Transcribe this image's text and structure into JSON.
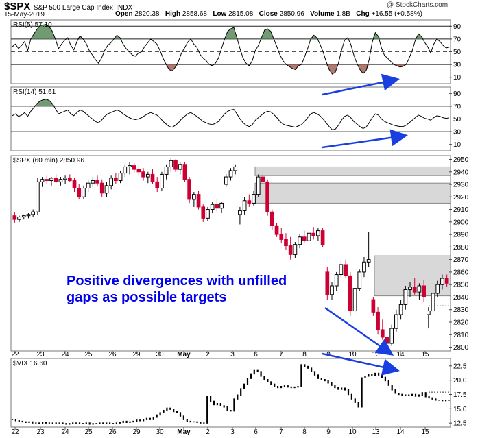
{
  "header": {
    "symbol": "$SPX",
    "name": "S&P 500 Large Cap Index",
    "exchange": "INDX",
    "date": "15-May-2019",
    "open_label": "Open",
    "open": "2820.38",
    "high_label": "High",
    "high": "2858.68",
    "low_label": "Low",
    "low": "2815.08",
    "close_label": "Close",
    "close": "2850.96",
    "volume_label": "Volume",
    "volume": "1.8B",
    "chg_label": "Chg",
    "chg": "+16.55 (+0.58%)",
    "credit": "@ StockCharts.com"
  },
  "colors": {
    "up": "#000000",
    "down": "#cc0033",
    "rsi_over": "#5a8a5a",
    "rsi_under": "#a0645a",
    "gap_fill": "#d8d8d8",
    "annotation": "#0000ee",
    "arrow": "#1a3fe0"
  },
  "chart_data": [
    {
      "type": "line",
      "panel": "rsi5",
      "label": "RSI(5) 57.10",
      "ylim": [
        0,
        100
      ],
      "y_ticks": [
        10,
        30,
        50,
        70,
        90
      ],
      "y_tick_labels": [
        "10",
        "30",
        "50",
        "70",
        "90"
      ],
      "reference_lines": [
        30,
        50,
        70,
        90
      ],
      "values": [
        58,
        62,
        55,
        60,
        66,
        52,
        70,
        78,
        85,
        91,
        92,
        93,
        89,
        82,
        70,
        55,
        62,
        68,
        72,
        60,
        53,
        66,
        75,
        70,
        63,
        52,
        45,
        38,
        32,
        40,
        52,
        60,
        64,
        70,
        76,
        72,
        62,
        55,
        50,
        45,
        43,
        48,
        50,
        58,
        64,
        70,
        66,
        62,
        52,
        40,
        30,
        22,
        20,
        26,
        35,
        48,
        56,
        65,
        70,
        62,
        57,
        46,
        40,
        36,
        30,
        28,
        32,
        40,
        55,
        70,
        82,
        86,
        88,
        72,
        55,
        40,
        32,
        28,
        36,
        52,
        60,
        72,
        84,
        86,
        82,
        70,
        58,
        45,
        36,
        30,
        27,
        24,
        22,
        28,
        30,
        42,
        55,
        70,
        76,
        72,
        62,
        50,
        35,
        22,
        15,
        18,
        32,
        52,
        68,
        72,
        62,
        45,
        32,
        22,
        16,
        20,
        38,
        65,
        80,
        74,
        56,
        44,
        40,
        35,
        30,
        28,
        26,
        27,
        30,
        40,
        52,
        68,
        78,
        74,
        65,
        58,
        48,
        62,
        70,
        66,
        60,
        56,
        57
      ]
    },
    {
      "type": "line",
      "panel": "rsi14",
      "label": "RSI(14) 51.61",
      "ylim": [
        0,
        100
      ],
      "y_ticks": [
        10,
        30,
        50,
        70,
        90
      ],
      "y_tick_labels": [
        "10",
        "30",
        "50",
        "70",
        "90"
      ],
      "reference_lines": [
        30,
        50,
        70
      ],
      "values": [
        55,
        58,
        54,
        56,
        60,
        54,
        62,
        68,
        74,
        78,
        80,
        81,
        79,
        74,
        66,
        58,
        60,
        62,
        64,
        58,
        55,
        60,
        64,
        62,
        58,
        54,
        50,
        46,
        44,
        48,
        54,
        58,
        60,
        62,
        64,
        62,
        58,
        55,
        52,
        50,
        49,
        50,
        52,
        55,
        58,
        60,
        58,
        56,
        52,
        46,
        42,
        38,
        37,
        40,
        44,
        50,
        54,
        58,
        60,
        57,
        54,
        50,
        46,
        44,
        42,
        41,
        43,
        46,
        52,
        58,
        62,
        64,
        65,
        58,
        50,
        44,
        40,
        38,
        41,
        48,
        52,
        56,
        60,
        62,
        61,
        57,
        52,
        46,
        42,
        40,
        39,
        38,
        37,
        39,
        41,
        46,
        52,
        58,
        60,
        58,
        55,
        50,
        44,
        38,
        33,
        34,
        40,
        48,
        54,
        56,
        52,
        46,
        42,
        38,
        35,
        37,
        44,
        52,
        58,
        56,
        50,
        46,
        44,
        42,
        40,
        39,
        38,
        38,
        40,
        44,
        48,
        52,
        56,
        54,
        51,
        50,
        48,
        52,
        55,
        54,
        52,
        51,
        51.61
      ]
    },
    {
      "type": "candlestick",
      "panel": "price",
      "label": "$SPX (60 min) 2850.96",
      "ylim": [
        2797,
        2953
      ],
      "y_ticks": [
        2800,
        2810,
        2820,
        2830,
        2840,
        2850,
        2860,
        2870,
        2880,
        2890,
        2900,
        2910,
        2920,
        2930,
        2940,
        2950
      ],
      "x_labels": [
        "22",
        "23",
        "24",
        "25",
        "26",
        "29",
        "30",
        "May",
        "2",
        "3",
        "6",
        "7",
        "8",
        "9",
        "10",
        "13",
        "14",
        "15"
      ],
      "candles": [
        [
          2905,
          2908,
          2899,
          2902
        ],
        [
          2902,
          2905,
          2900,
          2904
        ],
        [
          2904,
          2906,
          2902,
          2905
        ],
        [
          2905,
          2907,
          2903,
          2906
        ],
        [
          2906,
          2910,
          2904,
          2908
        ],
        [
          2908,
          2935,
          2906,
          2932
        ],
        [
          2932,
          2936,
          2928,
          2934
        ],
        [
          2934,
          2937,
          2930,
          2933
        ],
        [
          2933,
          2936,
          2929,
          2935
        ],
        [
          2935,
          2938,
          2931,
          2932
        ],
        [
          2932,
          2936,
          2929,
          2934
        ],
        [
          2934,
          2937,
          2930,
          2935
        ],
        [
          2935,
          2938,
          2932,
          2933
        ],
        [
          2933,
          2935,
          2924,
          2927
        ],
        [
          2927,
          2930,
          2918,
          2920
        ],
        [
          2920,
          2929,
          2918,
          2927
        ],
        [
          2927,
          2934,
          2924,
          2931
        ],
        [
          2931,
          2936,
          2928,
          2933
        ],
        [
          2933,
          2937,
          2929,
          2931
        ],
        [
          2931,
          2934,
          2920,
          2923
        ],
        [
          2923,
          2932,
          2920,
          2929
        ],
        [
          2929,
          2937,
          2926,
          2935
        ],
        [
          2935,
          2939,
          2930,
          2933
        ],
        [
          2933,
          2941,
          2931,
          2939
        ],
        [
          2939,
          2946,
          2936,
          2944
        ],
        [
          2944,
          2948,
          2938,
          2945
        ],
        [
          2945,
          2947,
          2939,
          2942
        ],
        [
          2942,
          2945,
          2937,
          2940
        ],
        [
          2940,
          2943,
          2933,
          2936
        ],
        [
          2936,
          2940,
          2931,
          2938
        ],
        [
          2938,
          2942,
          2930,
          2932
        ],
        [
          2932,
          2936,
          2924,
          2927
        ],
        [
          2927,
          2940,
          2925,
          2938
        ],
        [
          2938,
          2946,
          2934,
          2944
        ],
        [
          2944,
          2951,
          2940,
          2949
        ],
        [
          2949,
          2950,
          2940,
          2942
        ],
        [
          2942,
          2948,
          2938,
          2946
        ],
        [
          2946,
          2948,
          2932,
          2934
        ],
        [
          2934,
          2936,
          2915,
          2918
        ],
        [
          2918,
          2924,
          2912,
          2922
        ],
        [
          2922,
          2925,
          2910,
          2912
        ],
        [
          2912,
          2914,
          2900,
          2903
        ],
        [
          2903,
          2912,
          2901,
          2910
        ],
        [
          2910,
          2916,
          2907,
          2914
        ],
        [
          2914,
          2918,
          2908,
          2911
        ],
        [
          2911,
          2916,
          2907,
          2915
        ],
        [
          2930,
          2938,
          2928,
          2936
        ],
        [
          2936,
          2943,
          2933,
          2941
        ],
        [
          2941,
          2946,
          2938,
          2944
        ],
        [
          2906,
          2912,
          2898,
          2909
        ],
        [
          2909,
          2920,
          2906,
          2917
        ],
        [
          2917,
          2922,
          2912,
          2915
        ],
        [
          2915,
          2925,
          2913,
          2922
        ],
        [
          2922,
          2938,
          2920,
          2936
        ],
        [
          2936,
          2940,
          2930,
          2932
        ],
        [
          2932,
          2934,
          2905,
          2908
        ],
        [
          2908,
          2910,
          2894,
          2897
        ],
        [
          2897,
          2899,
          2888,
          2890
        ],
        [
          2890,
          2895,
          2883,
          2886
        ],
        [
          2886,
          2891,
          2878,
          2881
        ],
        [
          2881,
          2888,
          2870,
          2874
        ],
        [
          2874,
          2884,
          2871,
          2882
        ],
        [
          2882,
          2890,
          2879,
          2888
        ],
        [
          2888,
          2893,
          2883,
          2885
        ],
        [
          2885,
          2893,
          2880,
          2891
        ],
        [
          2891,
          2896,
          2886,
          2889
        ],
        [
          2889,
          2895,
          2885,
          2893
        ],
        [
          2893,
          2895,
          2880,
          2882
        ],
        [
          2860,
          2864,
          2838,
          2842
        ],
        [
          2842,
          2852,
          2838,
          2849
        ],
        [
          2849,
          2860,
          2845,
          2858
        ],
        [
          2858,
          2869,
          2855,
          2866
        ],
        [
          2866,
          2870,
          2855,
          2857
        ],
        [
          2857,
          2860,
          2825,
          2829
        ],
        [
          2829,
          2850,
          2826,
          2847
        ],
        [
          2847,
          2862,
          2845,
          2860
        ],
        [
          2860,
          2872,
          2856,
          2868
        ],
        [
          2868,
          2892,
          2864,
          2870
        ],
        [
          2838,
          2840,
          2825,
          2828
        ],
        [
          2828,
          2832,
          2810,
          2814
        ],
        [
          2814,
          2822,
          2806,
          2808
        ],
        [
          2808,
          2812,
          2800,
          2803
        ],
        [
          2803,
          2818,
          2801,
          2815
        ],
        [
          2815,
          2830,
          2812,
          2826
        ],
        [
          2826,
          2838,
          2822,
          2834
        ],
        [
          2834,
          2849,
          2830,
          2846
        ],
        [
          2846,
          2852,
          2840,
          2848
        ],
        [
          2848,
          2855,
          2842,
          2844
        ],
        [
          2844,
          2851,
          2838,
          2849
        ],
        [
          2849,
          2854,
          2836,
          2840
        ],
        [
          2826,
          2832,
          2815,
          2829
        ],
        [
          2829,
          2846,
          2826,
          2843
        ],
        [
          2843,
          2853,
          2840,
          2850
        ],
        [
          2850,
          2858,
          2846,
          2855
        ],
        [
          2855,
          2858,
          2848,
          2851
        ]
      ],
      "gaps": [
        [
          2937,
          2944
        ],
        [
          2915,
          2931
        ],
        [
          2841,
          2873
        ]
      ],
      "dashed_level": 2833
    },
    {
      "type": "line",
      "panel": "vix",
      "label": "$VIX 16.60",
      "ylim": [
        11.8,
        23.8
      ],
      "y_ticks": [
        12.5,
        15.0,
        17.5,
        20.0,
        22.5
      ],
      "y_tick_labels": [
        "12.5",
        "15.0",
        "17.5",
        "20.0",
        "22.5"
      ],
      "values": [
        13.2,
        13.0,
        12.9,
        12.8,
        12.7,
        12.8,
        12.6,
        12.6,
        12.5,
        12.7,
        12.6,
        12.6,
        12.5,
        12.6,
        12.6,
        12.5,
        12.4,
        12.5,
        12.6,
        12.6,
        12.5,
        12.5,
        12.6,
        12.4,
        12.5,
        12.5,
        12.6,
        12.5,
        12.6,
        12.5,
        12.5,
        12.6,
        12.7,
        12.9,
        12.7,
        12.8,
        12.9,
        13.1,
        13.0,
        13.2,
        13.4,
        13.2,
        13.6,
        14.0,
        14.4,
        14.8,
        15.2,
        15.0,
        14.6,
        14.4,
        13.8,
        13.2,
        12.9,
        12.8,
        12.8,
        12.7,
        12.6,
        12.6,
        17.2,
        16.4,
        15.8,
        16.0,
        15.6,
        15.4,
        14.8,
        14.7,
        16.8,
        17.5,
        18.6,
        19.4,
        20.4,
        21.2,
        21.8,
        21.6,
        20.8,
        20.2,
        19.8,
        19.4,
        19.0,
        18.8,
        19.0,
        19.1,
        18.9,
        18.8,
        18.9,
        19.0,
        22.8,
        22.5,
        22.2,
        21.6,
        21.0,
        20.4,
        20.2,
        20.0,
        19.6,
        19.2,
        18.8,
        18.5,
        18.7,
        18.4,
        17.6,
        16.8,
        16.2,
        15.4,
        20.5,
        20.8,
        21.1,
        20.9,
        21.3,
        21.0,
        20.6,
        20.0,
        19.2,
        18.4,
        17.8,
        17.6,
        17.5,
        17.4,
        17.5,
        17.6,
        17.3,
        17.5,
        17.9,
        17.2,
        17.0,
        16.8,
        16.6,
        16.6,
        16.5,
        16.6,
        16.6
      ]
    }
  ],
  "annotation": {
    "line1": "Positive divergences with unfilled",
    "line2": "gaps as possible targets"
  }
}
